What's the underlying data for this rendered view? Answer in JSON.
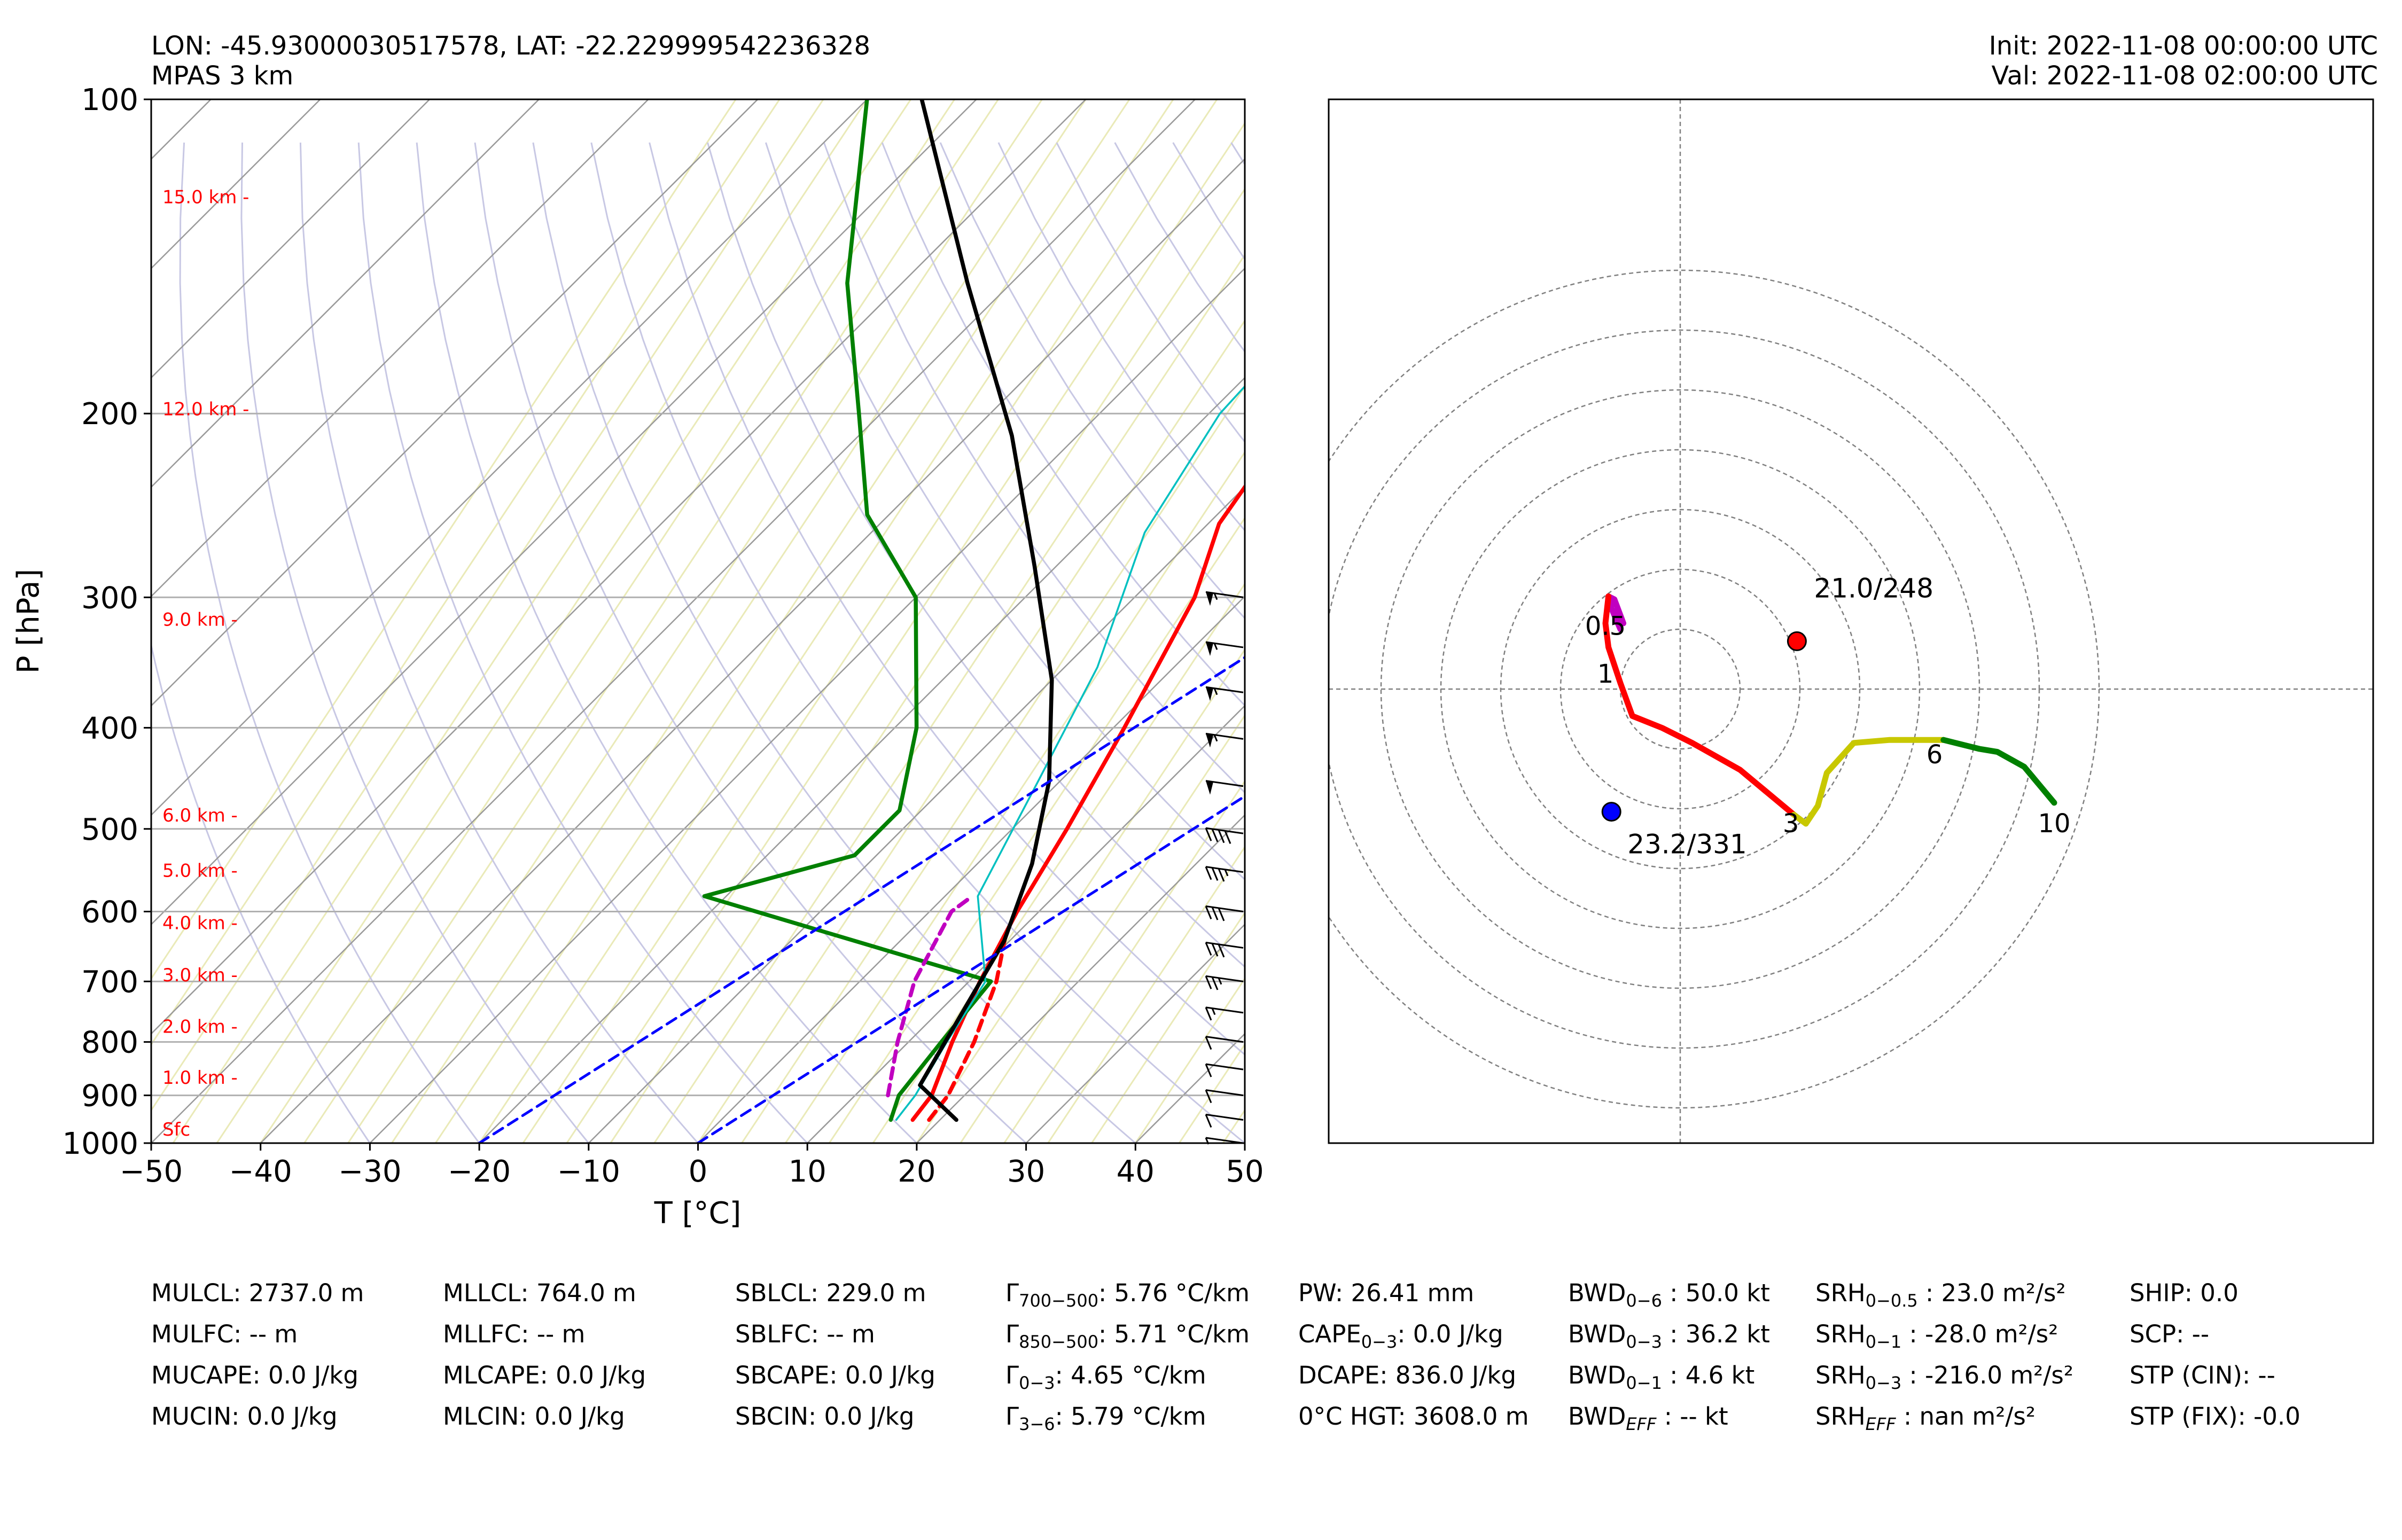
{
  "header": {
    "location": "LON: -45.93000030517578, LAT: -22.229999542236328",
    "model": "MPAS 3 km",
    "init": "Init: 2022-11-08 00:00:00 UTC",
    "valid": "Val: 2022-11-08 02:00:00 UTC"
  },
  "chart_data": [
    {
      "type": "line",
      "subtype": "skew-t log-p sounding",
      "xlabel": "T [°C]",
      "ylabel": "P [hPa]",
      "xlim": [
        -50,
        50
      ],
      "ylim": [
        1000,
        100
      ],
      "y_scale": "log",
      "x_ticks": [
        "−50",
        "−40",
        "−30",
        "−20",
        "−10",
        "0",
        "10",
        "20",
        "30",
        "40",
        "50"
      ],
      "y_ticks": [
        "100",
        "200",
        "300",
        "400",
        "500",
        "600",
        "700",
        "800",
        "900",
        "1000"
      ],
      "height_labels": [
        {
          "p": 970,
          "label": "Sfc"
        },
        {
          "p": 865,
          "label": "1.0 km -"
        },
        {
          "p": 773,
          "label": "2.0 km -"
        },
        {
          "p": 690,
          "label": "3.0 km -"
        },
        {
          "p": 615,
          "label": "4.0 km -"
        },
        {
          "p": 548,
          "label": "5.0 km -"
        },
        {
          "p": 485,
          "label": "6.0 km -"
        },
        {
          "p": 315,
          "label": "9.0 km -"
        },
        {
          "p": 198,
          "label": "12.0 km -"
        },
        {
          "p": 124,
          "label": "15.0 km -"
        }
      ],
      "series": [
        {
          "key": "temperature",
          "color": "#ff0000",
          "points": [
            [
              17.5,
              950
            ],
            [
              17,
              900
            ],
            [
              14,
              800
            ],
            [
              11,
              700
            ],
            [
              8,
              600
            ],
            [
              5,
              500
            ],
            [
              1,
              400
            ],
            [
              -4.5,
              300
            ],
            [
              -9,
              255
            ],
            [
              -12,
              200
            ],
            [
              -14,
              150
            ],
            [
              -17,
              100
            ]
          ]
        },
        {
          "key": "virtual_temperature",
          "color": "#ff0000",
          "dashed": true,
          "points": [
            [
              19,
              950
            ],
            [
              18.5,
              900
            ],
            [
              16,
              800
            ],
            [
              12.5,
              700
            ],
            [
              9,
              630
            ]
          ]
        },
        {
          "key": "dewpoint",
          "color": "#008000",
          "points": [
            [
              15.5,
              950
            ],
            [
              14,
              900
            ],
            [
              13,
              800
            ],
            [
              12,
              700
            ],
            [
              -22,
              580
            ],
            [
              -12,
              530
            ],
            [
              -12,
              480
            ],
            [
              -18,
              400
            ],
            [
              -30,
              300
            ],
            [
              -42,
              250
            ],
            [
              -52,
              200
            ],
            [
              -65,
              150
            ],
            [
              -80,
              100
            ]
          ]
        },
        {
          "key": "wetbulb",
          "color": "#00c0c0",
          "points": [
            [
              16,
              950
            ],
            [
              15.5,
              900
            ],
            [
              13.5,
              800
            ],
            [
              11.5,
              700
            ],
            [
              3,
              580
            ],
            [
              -2,
              450
            ],
            [
              -7,
              350
            ],
            [
              -15,
              260
            ],
            [
              -19,
              200
            ],
            [
              -20,
              150
            ],
            [
              -21,
              100
            ]
          ]
        },
        {
          "key": "parcel_trace",
          "color": "#000000",
          "points": [
            [
              21.5,
              950
            ],
            [
              15,
              880
            ],
            [
              12,
              740
            ],
            [
              9.5,
              640
            ],
            [
              5,
              540
            ],
            [
              -1,
              450
            ],
            [
              -10,
              360
            ],
            [
              -22,
              280
            ],
            [
              -36,
              210
            ],
            [
              -54,
              150
            ],
            [
              -75,
              100
            ]
          ]
        },
        {
          "key": "downdraft_trace",
          "color": "#c000c0",
          "dashed": true,
          "points": [
            [
              13,
              900
            ],
            [
              9,
              800
            ],
            [
              5,
              700
            ],
            [
              2,
              600
            ],
            [
              2.5,
              580
            ]
          ]
        },
        {
          "key": "freezing_isotherm_a",
          "color": "#0000ff",
          "dashed": true,
          "points": [
            [
              -20,
              1000
            ],
            [
              35,
              100
            ]
          ]
        },
        {
          "key": "freezing_isotherm_b",
          "color": "#0000ff",
          "dashed": true,
          "points": [
            [
              0,
              1000
            ],
            [
              55,
              100
            ]
          ]
        }
      ],
      "wind_barbs": [
        {
          "p": 300,
          "speed_kt": 55
        },
        {
          "p": 335,
          "speed_kt": 55
        },
        {
          "p": 370,
          "speed_kt": 55
        },
        {
          "p": 410,
          "speed_kt": 55
        },
        {
          "p": 455,
          "speed_kt": 50
        },
        {
          "p": 505,
          "speed_kt": 40
        },
        {
          "p": 550,
          "speed_kt": 35
        },
        {
          "p": 600,
          "speed_kt": 30
        },
        {
          "p": 650,
          "speed_kt": 30
        },
        {
          "p": 700,
          "speed_kt": 25
        },
        {
          "p": 750,
          "speed_kt": 15
        },
        {
          "p": 800,
          "speed_kt": 10
        },
        {
          "p": 850,
          "speed_kt": 10
        },
        {
          "p": 900,
          "speed_kt": 10
        },
        {
          "p": 950,
          "speed_kt": 10
        },
        {
          "p": 1000,
          "speed_kt": 5
        }
      ]
    },
    {
      "type": "line",
      "subtype": "hodograph",
      "rings": [
        10,
        20,
        30,
        40,
        50,
        60,
        70
      ],
      "segments": [
        {
          "color": "#c000c0",
          "points": [
            [
              -10,
              10
            ],
            [
              -11.5,
              13.5
            ],
            [
              -12,
              15.5
            ],
            [
              -11,
              15
            ],
            [
              -9.5,
              11
            ]
          ]
        },
        {
          "color": "#ff0000",
          "points": [
            [
              -12,
              15.5
            ],
            [
              -12.5,
              11
            ],
            [
              -12,
              7
            ],
            [
              -11,
              4
            ],
            [
              -10,
              1
            ],
            [
              -8,
              -4.5
            ],
            [
              -3,
              -6.5
            ],
            [
              2,
              -9
            ],
            [
              10,
              -13.5
            ],
            [
              16,
              -18.5
            ],
            [
              19,
              -21
            ]
          ]
        },
        {
          "color": "#c8c800",
          "points": [
            [
              19,
              -21
            ],
            [
              21,
              -22.5
            ],
            [
              23,
              -19.5
            ],
            [
              24.5,
              -14
            ],
            [
              29,
              -9
            ],
            [
              35,
              -8.5
            ],
            [
              44,
              -8.5
            ]
          ]
        },
        {
          "color": "#008000",
          "points": [
            [
              44,
              -8.5
            ],
            [
              50,
              -10
            ],
            [
              53,
              -10.5
            ],
            [
              57.5,
              -13
            ],
            [
              62.5,
              -19
            ]
          ]
        }
      ],
      "height_labels": [
        {
          "label": "0.5",
          "u": -12.5,
          "v": 10.5
        },
        {
          "label": "1",
          "u": -12.5,
          "v": 2.5
        },
        {
          "label": "3",
          "u": 18.5,
          "v": -22.5
        },
        {
          "label": "6",
          "u": 42.5,
          "v": -11
        },
        {
          "label": "10",
          "u": 62.5,
          "v": -22.5
        }
      ],
      "storm_motion": [
        {
          "label": "21.0/248",
          "color": "#ff0000",
          "u": 19.5,
          "v": 8
        },
        {
          "label": "23.2/331",
          "color": "#0000ff",
          "u": -11.5,
          "v": -20.5
        }
      ]
    }
  ],
  "indices": {
    "col1": [
      "MULCL: 2737.0 m",
      "MULFC: -- m",
      "MUCAPE: 0.0 J/kg",
      "MUCIN: 0.0 J/kg"
    ],
    "col2": [
      "MLLCL: 764.0 m",
      "MLLFC: -- m",
      "MLCAPE: 0.0 J/kg",
      "MLCIN: 0.0 J/kg"
    ],
    "col3": [
      "SBLCL: 229.0 m",
      "SBLFC: -- m",
      "SBCAPE: 0.0 J/kg",
      "SBCIN: 0.0 J/kg"
    ],
    "col4": [
      {
        "sym": "Γ",
        "sub": "700−500",
        "val": ": 5.76 °C/km"
      },
      {
        "sym": "Γ",
        "sub": "850−500",
        "val": ": 5.71 °C/km"
      },
      {
        "sym": "Γ",
        "sub": "0−3",
        "val": ": 4.65 °C/km"
      },
      {
        "sym": "Γ",
        "sub": "3−6",
        "val": ": 5.79 °C/km"
      }
    ],
    "col5": [
      {
        "sym": "PW: 26.41 mm",
        "sub": "",
        "val": ""
      },
      {
        "sym": "CAPE",
        "sub": "0−3",
        "val": ": 0.0 J/kg"
      },
      {
        "sym": "DCAPE: 836.0 J/kg",
        "sub": "",
        "val": ""
      },
      {
        "sym": "0°C HGT: 3608.0 m",
        "sub": "",
        "val": ""
      }
    ],
    "col6": [
      {
        "sym": "BWD",
        "sub": "0−6",
        "val": " : 50.0 kt"
      },
      {
        "sym": "BWD",
        "sub": "0−3",
        "val": " : 36.2 kt"
      },
      {
        "sym": "BWD",
        "sub": "0−1",
        "val": " : 4.6 kt"
      },
      {
        "sym": "BWD",
        "sub": "EFF",
        "val": " : -- kt"
      }
    ],
    "col7": [
      {
        "sym": "SRH",
        "sub": "0−0.5",
        "val": " : 23.0 m²/s²"
      },
      {
        "sym": "SRH",
        "sub": "0−1",
        "val": " : -28.0 m²/s²"
      },
      {
        "sym": "SRH",
        "sub": "0−3",
        "val": " : -216.0 m²/s²"
      },
      {
        "sym": "SRH",
        "sub": "EFF",
        "val": " : nan m²/s²"
      }
    ],
    "col8": [
      "SHIP: 0.0",
      "SCP: --",
      "STP (CIN): --",
      "STP (FIX): -0.0"
    ]
  }
}
